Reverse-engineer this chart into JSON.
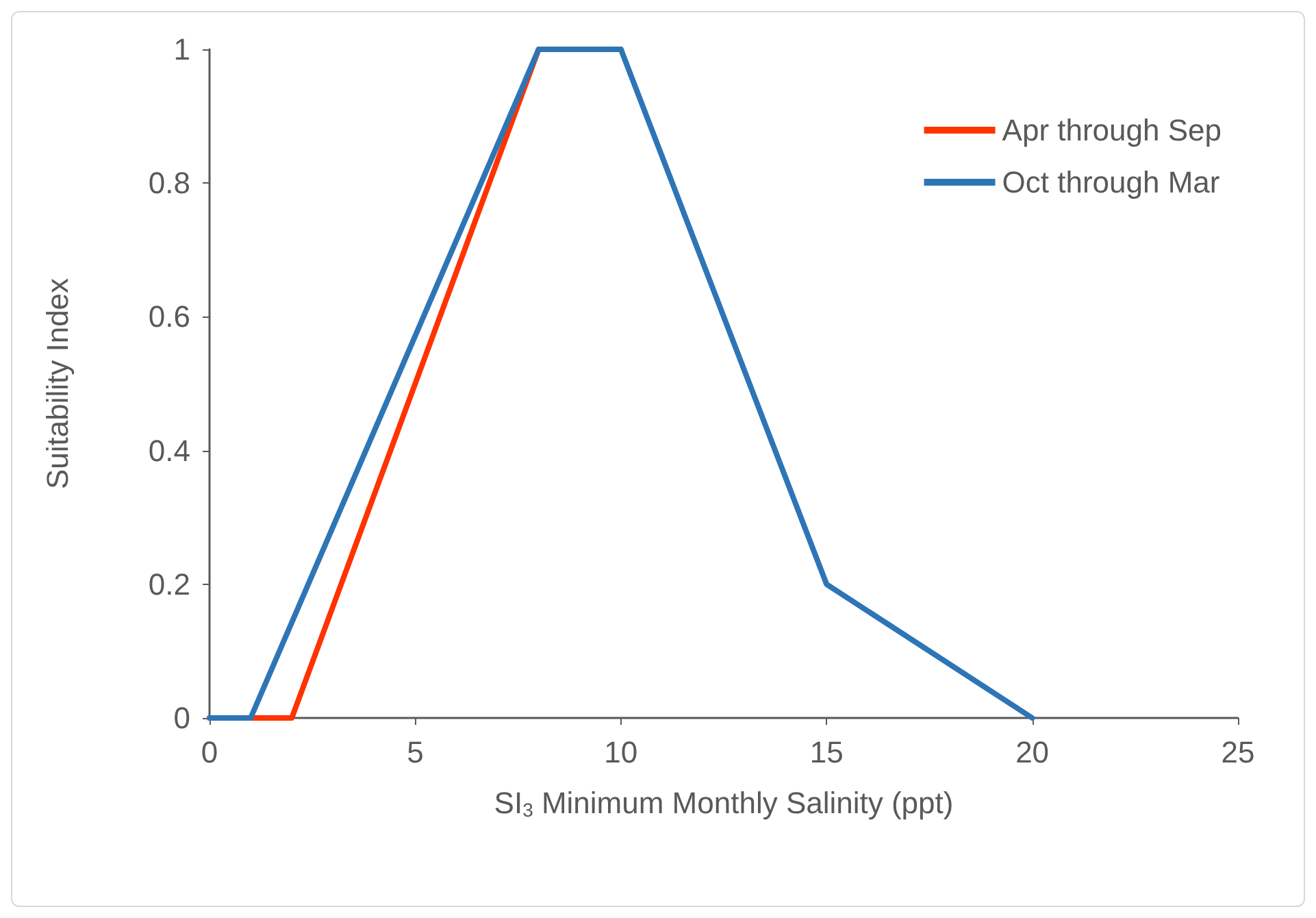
{
  "chart_data": {
    "type": "line",
    "xlabel": "SI$_{3}$ Minimum Monthly Salinity (ppt)",
    "ylabel": "Suitability Index",
    "xlim": [
      0,
      25
    ],
    "xticks": [
      0,
      5,
      10,
      15,
      20,
      25
    ],
    "ylim": [
      0,
      1
    ],
    "yticks": [
      0,
      0.2,
      0.4,
      0.6,
      0.8,
      1
    ],
    "grid": false,
    "legend": "top right",
    "marker": "none",
    "line_style": "solid",
    "series": [
      {
        "name": "Apr through Sep",
        "color": "#ff3300",
        "x": [
          0,
          2,
          8,
          10
        ],
        "values": [
          0,
          0,
          1,
          1
        ]
      },
      {
        "name": "Oct through Mar",
        "color": "#2e75b6",
        "x": [
          0,
          1,
          8,
          10,
          15,
          20
        ],
        "values": [
          0,
          0,
          1,
          1,
          0.2,
          0
        ]
      }
    ]
  }
}
